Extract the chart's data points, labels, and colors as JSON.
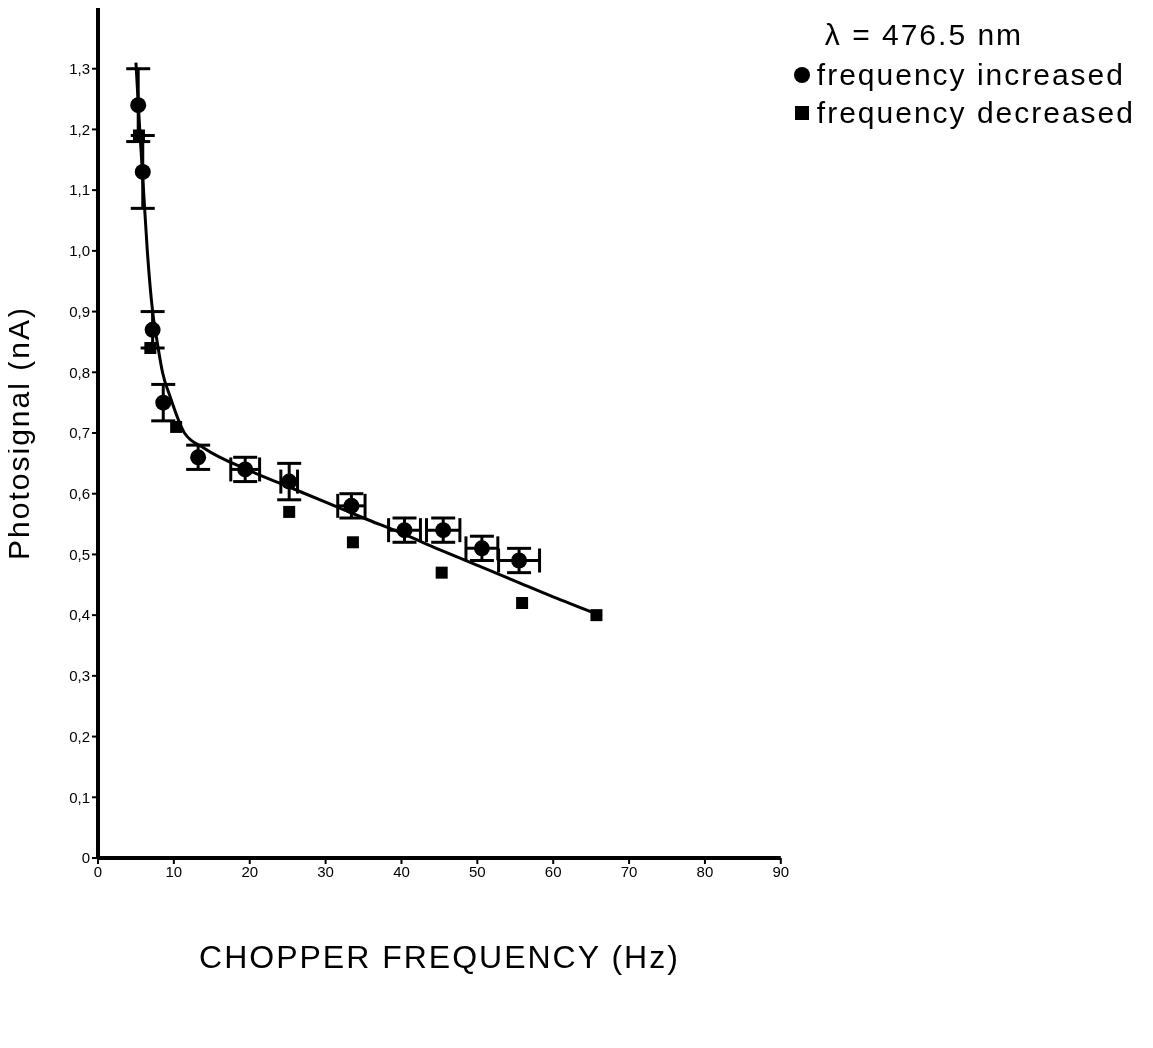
{
  "chart_data": {
    "type": "scatter",
    "xlabel": "CHOPPER FREQUENCY  (Hz)",
    "ylabel": "Photosignal (nA)",
    "annotations": [
      "λ = 476.5 nm"
    ],
    "xlim": [
      0,
      90
    ],
    "xticks": [
      0,
      10,
      20,
      30,
      40,
      50,
      60,
      70,
      80,
      90
    ],
    "ylim": [
      0,
      1.4
    ],
    "yticks": [
      0,
      {
        "value": 0.1,
        "label": "0,1"
      },
      {
        "value": 0.2,
        "label": "0,2"
      },
      {
        "value": 0.3,
        "label": "0,3"
      },
      {
        "value": 0.4,
        "label": "0,4"
      },
      {
        "value": 0.5,
        "label": "0,5"
      },
      {
        "value": 0.6,
        "label": "0,6"
      },
      {
        "value": 0.7,
        "label": "0,7"
      },
      {
        "value": 0.8,
        "label": "0,8"
      },
      {
        "value": 0.9,
        "label": "0,9"
      },
      {
        "value": 1.0,
        "label": "1,0"
      },
      {
        "value": 1.1,
        "label": "1,1"
      },
      {
        "value": 1.2,
        "label": "1,2"
      },
      {
        "value": 1.3,
        "label": "1,3"
      }
    ],
    "legend": "top right",
    "series": [
      {
        "name": "frequency increased",
        "color": "#000000",
        "marker": "circle",
        "x": [
          5.3,
          5.9,
          7.2,
          8.6,
          13.2,
          19.4,
          25.2,
          33.4,
          40.4,
          45.5,
          50.6,
          55.5
        ],
        "values": [
          1.24,
          1.13,
          0.87,
          0.75,
          0.66,
          0.64,
          0.62,
          0.58,
          0.54,
          0.54,
          0.51,
          0.49
        ],
        "errors": [
          0.06,
          0.06,
          0.03,
          0.03,
          0.02,
          0.02,
          0.03,
          0.02,
          0.02,
          0.02,
          0.02,
          0.02
        ],
        "xerrors": [
          null,
          null,
          null,
          null,
          null,
          1.9,
          1.1,
          1.8,
          2.1,
          2.2,
          2.1,
          2.7
        ]
      },
      {
        "name": "frequency decreased",
        "color": "#000000",
        "marker": "square",
        "x": [
          5.4,
          6.9,
          10.3,
          25.2,
          33.6,
          45.3,
          55.9,
          65.7
        ],
        "values": [
          1.19,
          0.84,
          0.71,
          0.57,
          0.52,
          0.47,
          0.42,
          0.4
        ]
      },
      {
        "type": "line",
        "color": "#000000",
        "marker": "none",
        "line_style": "solid",
        "x": [
          5.0,
          5.5,
          6.0,
          6.5,
          7.2,
          7.8,
          8.5,
          9.5,
          11.4,
          14,
          20,
          25,
          30,
          35,
          40,
          45,
          50,
          55,
          60,
          65.7
        ],
        "values": [
          1.31,
          1.2,
          1.1,
          1.0,
          0.9,
          0.85,
          0.8,
          0.76,
          0.7,
          0.675,
          0.638,
          0.612,
          0.586,
          0.56,
          0.535,
          0.508,
          0.482,
          0.456,
          0.43,
          0.402
        ]
      }
    ]
  }
}
